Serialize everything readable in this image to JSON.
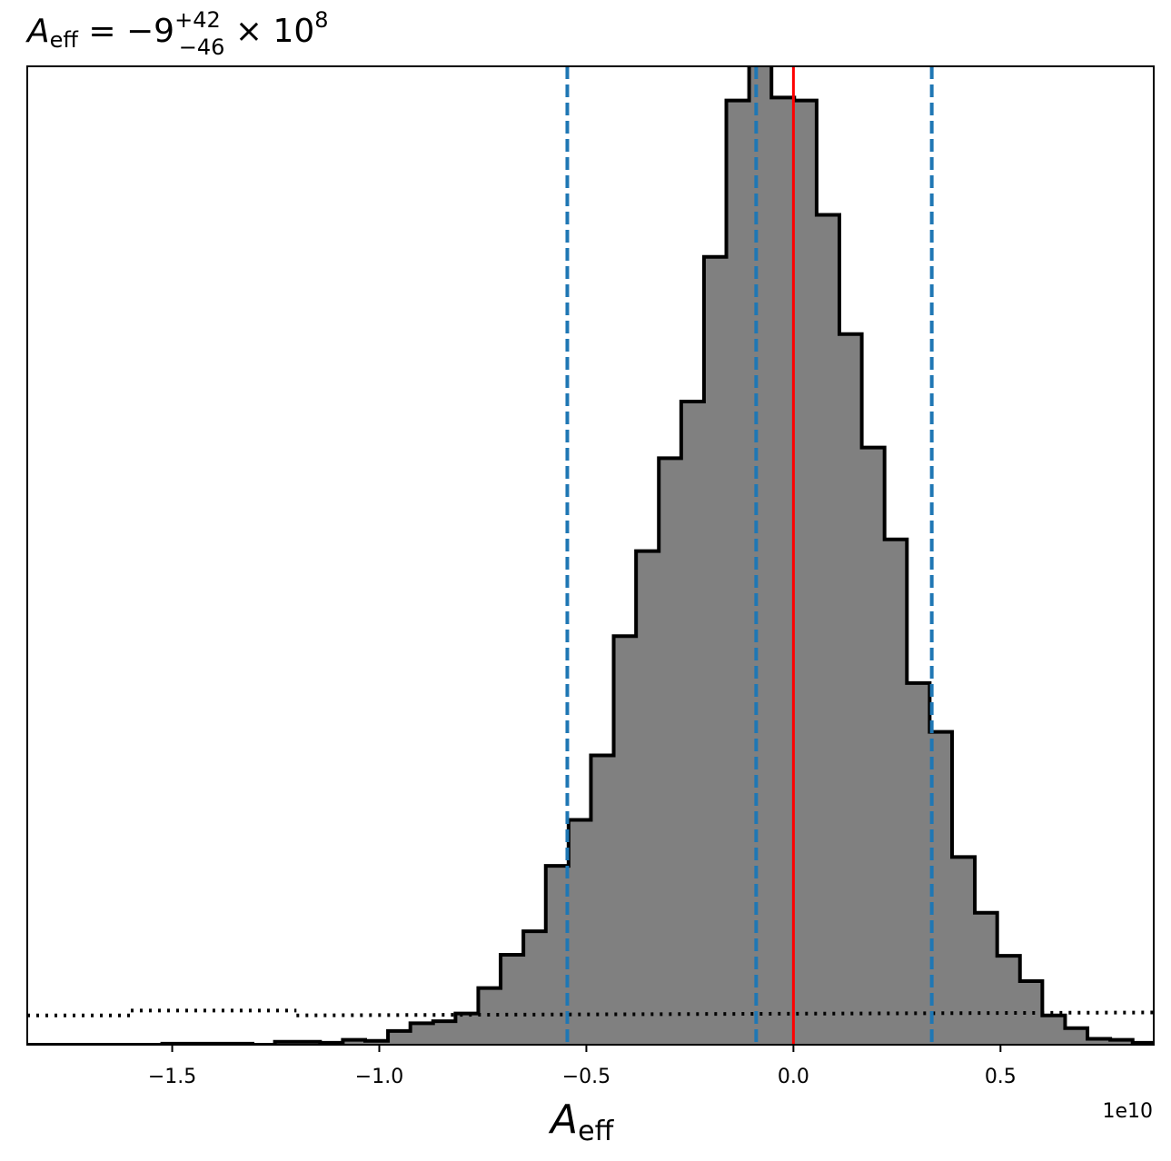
{
  "chart_data": {
    "type": "histogram",
    "title": {
      "base": "A",
      "base_sub": "eff",
      "equals": " = ",
      "value": "−9",
      "sup": "+42",
      "sub": "−46",
      "times": " × 10",
      "exp": "8"
    },
    "xlabel": {
      "base": "A",
      "sub": "eff"
    },
    "x_offset_label": "1e10",
    "xlim": [
      -1.85,
      0.87
    ],
    "ylim": [
      0,
      1
    ],
    "x_ticks": [
      -1.5,
      -1.0,
      -0.5,
      0.0,
      0.5
    ],
    "x_tick_labels": [
      "−1.5",
      "−1.0",
      "−0.5",
      "0.0",
      "0.5"
    ],
    "y_ticks_shown": false,
    "grid": false,
    "histogram": {
      "fill_color": "#808080",
      "edge_color": "#000000",
      "bin_edges": [
        -1.85,
        -1.796,
        -1.742,
        -1.687,
        -1.633,
        -1.579,
        -1.524,
        -1.47,
        -1.415,
        -1.361,
        -1.306,
        -1.252,
        -1.197,
        -1.143,
        -1.088,
        -1.034,
        -0.979,
        -0.925,
        -0.87,
        -0.816,
        -0.761,
        -0.707,
        -0.652,
        -0.598,
        -0.543,
        -0.489,
        -0.434,
        -0.38,
        -0.325,
        -0.271,
        -0.216,
        -0.162,
        -0.107,
        -0.053,
        0.002,
        0.056,
        0.111,
        0.165,
        0.22,
        0.274,
        0.329,
        0.383,
        0.438,
        0.492,
        0.547,
        0.601,
        0.656,
        0.71,
        0.765,
        0.819,
        0.874
      ],
      "densities": [
        0,
        0,
        0,
        0,
        0,
        0,
        0.001,
        0.001,
        0.001,
        0.001,
        0,
        0.003,
        0.003,
        0.002,
        0.005,
        0.004,
        0.014,
        0.022,
        0.024,
        0.032,
        0.058,
        0.092,
        0.116,
        0.183,
        0.23,
        0.296,
        0.418,
        0.505,
        0.6,
        0.658,
        0.806,
        0.966,
        1.002,
        0.969,
        0.966,
        0.849,
        0.727,
        0.611,
        0.517,
        0.37,
        0.32,
        0.192,
        0.135,
        0.091,
        0.065,
        0.03,
        0.017,
        0.006,
        0.005,
        0.002
      ]
    },
    "prior": {
      "style": "dotted",
      "color": "#000000",
      "level_left": 0.03,
      "level_mid": 0.035,
      "level_right": 0.033,
      "step_x": [
        -1.6,
        -1.2
      ]
    },
    "quantile_lines": {
      "color": "#1f77b4",
      "style": "dashed",
      "x": [
        -0.546,
        -0.09,
        0.334
      ]
    },
    "truth_line": {
      "color": "#ff0000",
      "x": 0.0
    }
  }
}
